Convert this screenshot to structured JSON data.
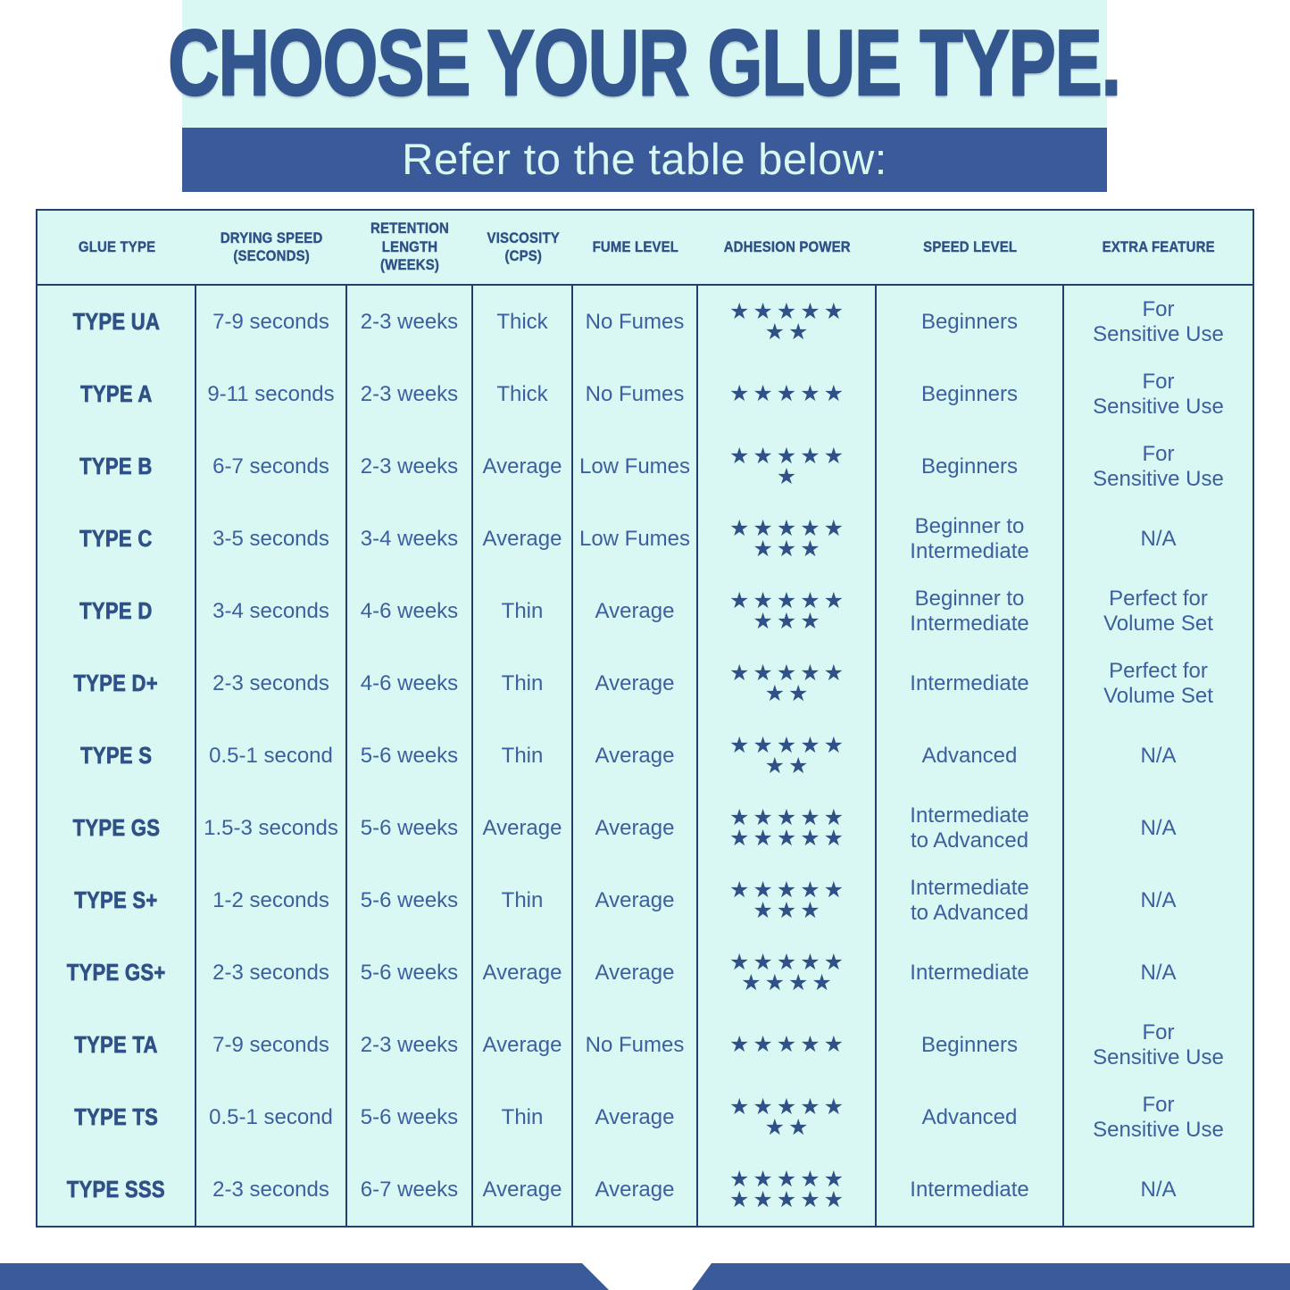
{
  "chart_data": {
    "type": "table",
    "title": "CHOOSE YOUR GLUE TYPE.",
    "subtitle": "Refer to the table below:",
    "star_symbol": "★",
    "legend": "adhesion_stars = number of filled stars shown (5 per line, remainder on second line)",
    "columns": [
      {
        "id": "glue_type",
        "lines": [
          "GLUE TYPE"
        ]
      },
      {
        "id": "drying_speed",
        "lines": [
          "DRYING SPEED",
          "(SECONDS)"
        ]
      },
      {
        "id": "retention_length",
        "lines": [
          "RETENTION",
          "LENGTH",
          "(WEEKS)"
        ]
      },
      {
        "id": "viscosity",
        "lines": [
          "VISCOSITY",
          "(CPS)"
        ]
      },
      {
        "id": "fume_level",
        "lines": [
          "FUME LEVEL"
        ]
      },
      {
        "id": "adhesion_power",
        "lines": [
          "ADHESION POWER"
        ]
      },
      {
        "id": "speed_level",
        "lines": [
          "SPEED LEVEL"
        ]
      },
      {
        "id": "extra_feature",
        "lines": [
          "EXTRA FEATURE"
        ]
      }
    ],
    "rows": [
      {
        "glue_type": "TYPE UA",
        "drying_speed": "7-9 seconds",
        "retention_length": "2-3 weeks",
        "viscosity": "Thick",
        "fume_level": "No Fumes",
        "adhesion_stars": 7,
        "speed_level": [
          "Beginners"
        ],
        "extra_feature": [
          "For",
          "Sensitive Use"
        ]
      },
      {
        "glue_type": "TYPE A",
        "drying_speed": "9-11 seconds",
        "retention_length": "2-3 weeks",
        "viscosity": "Thick",
        "fume_level": "No Fumes",
        "adhesion_stars": 5,
        "speed_level": [
          "Beginners"
        ],
        "extra_feature": [
          "For",
          "Sensitive Use"
        ]
      },
      {
        "glue_type": "TYPE B",
        "drying_speed": "6-7 seconds",
        "retention_length": "2-3 weeks",
        "viscosity": "Average",
        "fume_level": "Low Fumes",
        "adhesion_stars": 6,
        "speed_level": [
          "Beginners"
        ],
        "extra_feature": [
          "For",
          "Sensitive Use"
        ]
      },
      {
        "glue_type": "TYPE C",
        "drying_speed": "3-5 seconds",
        "retention_length": "3-4 weeks",
        "viscosity": "Average",
        "fume_level": "Low Fumes",
        "adhesion_stars": 8,
        "speed_level": [
          "Beginner to",
          "Intermediate"
        ],
        "extra_feature": [
          "N/A"
        ]
      },
      {
        "glue_type": "TYPE D",
        "drying_speed": "3-4 seconds",
        "retention_length": "4-6 weeks",
        "viscosity": "Thin",
        "fume_level": "Average",
        "adhesion_stars": 8,
        "speed_level": [
          "Beginner to",
          "Intermediate"
        ],
        "extra_feature": [
          "Perfect for",
          "Volume Set"
        ]
      },
      {
        "glue_type": "TYPE D+",
        "drying_speed": "2-3 seconds",
        "retention_length": "4-6 weeks",
        "viscosity": "Thin",
        "fume_level": "Average",
        "adhesion_stars": 7,
        "speed_level": [
          "Intermediate"
        ],
        "extra_feature": [
          "Perfect for",
          "Volume Set"
        ]
      },
      {
        "glue_type": "TYPE S",
        "drying_speed": "0.5-1 second",
        "retention_length": "5-6 weeks",
        "viscosity": "Thin",
        "fume_level": "Average",
        "adhesion_stars": 7,
        "speed_level": [
          "Advanced"
        ],
        "extra_feature": [
          "N/A"
        ]
      },
      {
        "glue_type": "TYPE GS",
        "drying_speed": "1.5-3 seconds",
        "retention_length": "5-6 weeks",
        "viscosity": "Average",
        "fume_level": "Average",
        "adhesion_stars": 10,
        "speed_level": [
          "Intermediate",
          "to Advanced"
        ],
        "extra_feature": [
          "N/A"
        ]
      },
      {
        "glue_type": "TYPE S+",
        "drying_speed": "1-2 seconds",
        "retention_length": "5-6 weeks",
        "viscosity": "Thin",
        "fume_level": "Average",
        "adhesion_stars": 8,
        "speed_level": [
          "Intermediate",
          "to Advanced"
        ],
        "extra_feature": [
          "N/A"
        ]
      },
      {
        "glue_type": "TYPE GS+",
        "drying_speed": "2-3 seconds",
        "retention_length": "5-6 weeks",
        "viscosity": "Average",
        "fume_level": "Average",
        "adhesion_stars": 9,
        "speed_level": [
          "Intermediate"
        ],
        "extra_feature": [
          "N/A"
        ]
      },
      {
        "glue_type": "TYPE TA",
        "drying_speed": "7-9 seconds",
        "retention_length": "2-3 weeks",
        "viscosity": "Average",
        "fume_level": "No Fumes",
        "adhesion_stars": 5,
        "speed_level": [
          "Beginners"
        ],
        "extra_feature": [
          "For",
          "Sensitive Use"
        ]
      },
      {
        "glue_type": "TYPE TS",
        "drying_speed": "0.5-1 second",
        "retention_length": "5-6 weeks",
        "viscosity": "Thin",
        "fume_level": "Average",
        "adhesion_stars": 7,
        "speed_level": [
          "Advanced"
        ],
        "extra_feature": [
          "For",
          "Sensitive Use"
        ]
      },
      {
        "glue_type": "TYPE SSS",
        "drying_speed": "2-3 seconds",
        "retention_length": "6-7 weeks",
        "viscosity": "Average",
        "fume_level": "Average",
        "adhesion_stars": 10,
        "speed_level": [
          "Intermediate"
        ],
        "extra_feature": [
          "N/A"
        ]
      }
    ]
  },
  "colors": {
    "accent_blue": "#3b5a9a",
    "title_blue": "#33568f",
    "header_text_blue": "#2f5187",
    "body_text_blue": "#3c5f9f",
    "table_background": "#d9f8f4",
    "border_navy": "#23406e",
    "page_background": "#ffffff"
  }
}
